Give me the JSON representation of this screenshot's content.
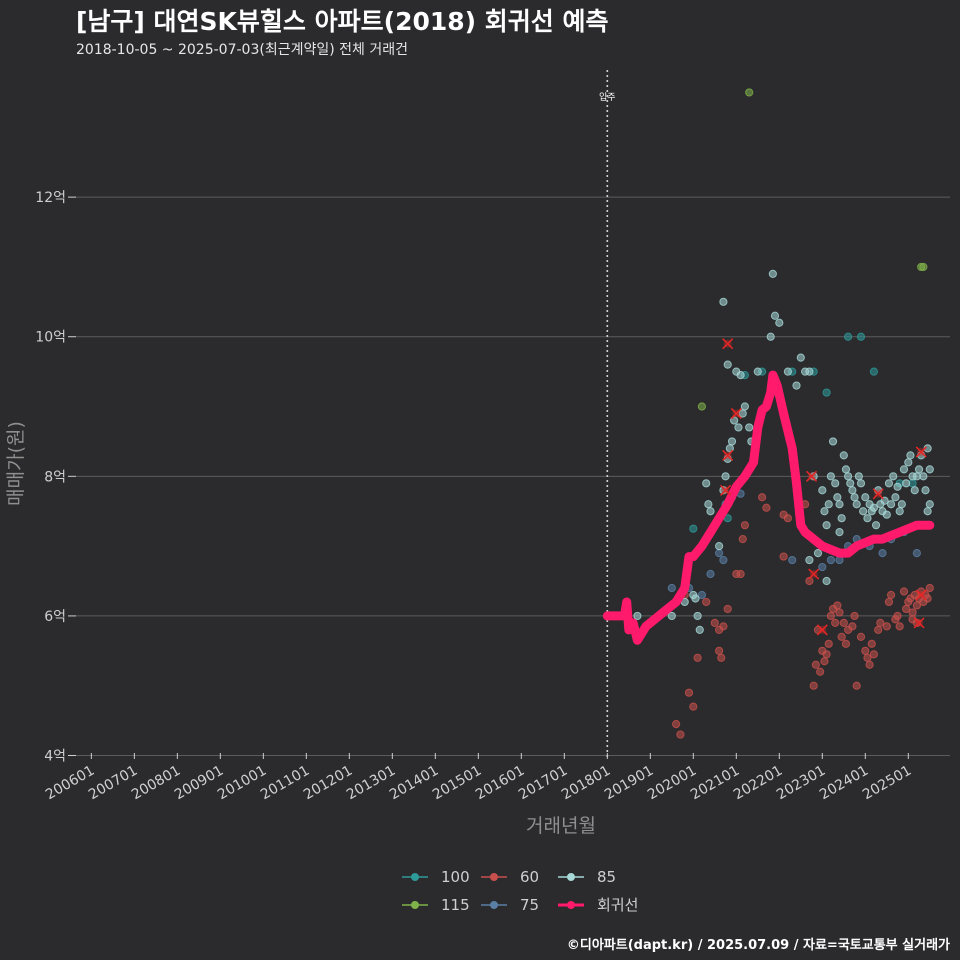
{
  "header": {
    "title": "[남구] 대연SK뷰힐스 아파트(2018) 회귀선 예측",
    "subtitle": "2018-10-05 ~ 2025-07-03(최근계약일) 전체 거래건"
  },
  "footer": {
    "caption": "©디아파트(dapt.kr) / 2025.07.09 / 자료=국토교통부 실거래가"
  },
  "chart_data": {
    "type": "scatter",
    "xlabel": "거래년월",
    "ylabel": "매매가(원)",
    "x_unit": "year",
    "xlim": [
      2005.55,
      2025.97
    ],
    "ylim": [
      3.95,
      13.85
    ],
    "y_ticks": [
      4,
      6,
      8,
      10,
      12
    ],
    "y_tick_labels": [
      "4억",
      "6억",
      "8억",
      "10억",
      "12억"
    ],
    "x_ticks": [
      2006,
      2007,
      2008,
      2009,
      2010,
      2011,
      2012,
      2013,
      2014,
      2015,
      2016,
      2017,
      2018,
      2019,
      2020,
      2021,
      2022,
      2023,
      2024,
      2025
    ],
    "x_tick_labels": [
      "200601",
      "200701",
      "200801",
      "200901",
      "201001",
      "201101",
      "201201",
      "201301",
      "201401",
      "201501",
      "201601",
      "201701",
      "201801",
      "201901",
      "202001",
      "202101",
      "202201",
      "202301",
      "202401",
      "202501"
    ],
    "grid": true,
    "legend_position": "bottom",
    "annotation": {
      "x": 2018.0,
      "label": "입주"
    },
    "colors": {
      "100": "#2e9a9a",
      "115": "#7fb24a",
      "60": "#c8504c",
      "75": "#5a7fa5",
      "85": "#a8d8d8",
      "회귀선": "#ff1a6c",
      "background": "#2b2b2d",
      "grid": "#5c5c5c",
      "sale_mark": "#e32626"
    },
    "legend": [
      {
        "key": "100",
        "label": "100"
      },
      {
        "key": "115",
        "label": "115"
      },
      {
        "key": "60",
        "label": "60"
      },
      {
        "key": "75",
        "label": "75"
      },
      {
        "key": "85",
        "label": "85"
      },
      {
        "key": "회귀선",
        "label": "회귀선"
      }
    ],
    "series": [
      {
        "name": "100",
        "points": [
          [
            2020.0,
            7.25
          ],
          [
            2020.8,
            7.4
          ],
          [
            2021.2,
            9.45
          ],
          [
            2021.6,
            9.5
          ],
          [
            2022.3,
            9.5
          ],
          [
            2022.8,
            9.5
          ],
          [
            2023.1,
            9.2
          ],
          [
            2023.6,
            10.0
          ],
          [
            2023.9,
            10.0
          ],
          [
            2024.2,
            9.5
          ],
          [
            2024.8,
            7.9
          ],
          [
            2025.1,
            7.9
          ]
        ]
      },
      {
        "name": "115",
        "points": [
          [
            2020.2,
            9.0
          ],
          [
            2021.3,
            13.5
          ],
          [
            2025.3,
            11.0
          ],
          [
            2025.35,
            11.0
          ]
        ]
      },
      {
        "name": "60",
        "points": [
          [
            2019.6,
            4.45
          ],
          [
            2019.7,
            4.3
          ],
          [
            2019.9,
            4.9
          ],
          [
            2020.0,
            4.7
          ],
          [
            2020.1,
            5.4
          ],
          [
            2019.8,
            6.3
          ],
          [
            2020.3,
            6.2
          ],
          [
            2020.5,
            5.9
          ],
          [
            2020.6,
            5.8
          ],
          [
            2020.6,
            5.5
          ],
          [
            2020.65,
            5.4
          ],
          [
            2020.7,
            5.85
          ],
          [
            2020.8,
            6.1
          ],
          [
            2021.0,
            6.6
          ],
          [
            2021.1,
            6.6
          ],
          [
            2021.2,
            7.3
          ],
          [
            2021.15,
            7.1
          ],
          [
            2021.6,
            7.7
          ],
          [
            2021.7,
            7.55
          ],
          [
            2022.1,
            7.45
          ],
          [
            2022.2,
            7.4
          ],
          [
            2022.6,
            7.6
          ],
          [
            2022.1,
            6.85
          ],
          [
            2022.7,
            6.5
          ],
          [
            2022.8,
            5.0
          ],
          [
            2022.85,
            5.3
          ],
          [
            2022.9,
            5.8
          ],
          [
            2022.95,
            5.2
          ],
          [
            2023.0,
            5.5
          ],
          [
            2023.05,
            5.35
          ],
          [
            2023.1,
            5.45
          ],
          [
            2023.15,
            5.6
          ],
          [
            2023.2,
            6.0
          ],
          [
            2023.25,
            6.1
          ],
          [
            2023.3,
            5.9
          ],
          [
            2023.35,
            6.15
          ],
          [
            2023.4,
            6.05
          ],
          [
            2023.45,
            5.7
          ],
          [
            2023.5,
            5.9
          ],
          [
            2023.55,
            5.6
          ],
          [
            2023.6,
            5.8
          ],
          [
            2023.7,
            5.85
          ],
          [
            2023.75,
            6.0
          ],
          [
            2023.8,
            5.0
          ],
          [
            2023.9,
            5.7
          ],
          [
            2024.0,
            5.5
          ],
          [
            2024.05,
            5.4
          ],
          [
            2024.1,
            5.3
          ],
          [
            2024.15,
            5.6
          ],
          [
            2024.2,
            5.45
          ],
          [
            2024.3,
            5.8
          ],
          [
            2024.35,
            5.9
          ],
          [
            2024.5,
            5.85
          ],
          [
            2024.55,
            6.2
          ],
          [
            2024.6,
            6.3
          ],
          [
            2024.7,
            5.95
          ],
          [
            2024.75,
            6.0
          ],
          [
            2024.8,
            5.85
          ],
          [
            2024.9,
            6.35
          ],
          [
            2024.95,
            6.1
          ],
          [
            2025.0,
            6.2
          ],
          [
            2025.05,
            6.25
          ],
          [
            2025.1,
            6.05
          ],
          [
            2025.15,
            6.3
          ],
          [
            2025.2,
            6.15
          ],
          [
            2025.25,
            6.25
          ],
          [
            2025.3,
            6.35
          ],
          [
            2025.35,
            6.2
          ],
          [
            2025.4,
            6.3
          ],
          [
            2025.45,
            6.25
          ],
          [
            2025.5,
            6.4
          ],
          [
            2025.1,
            5.95
          ],
          [
            2025.2,
            5.9
          ]
        ]
      },
      {
        "name": "75",
        "points": [
          [
            2019.5,
            6.4
          ],
          [
            2019.9,
            6.4
          ],
          [
            2020.2,
            6.3
          ],
          [
            2020.4,
            6.6
          ],
          [
            2020.6,
            6.9
          ],
          [
            2020.7,
            6.8
          ],
          [
            2020.75,
            7.6
          ],
          [
            2020.9,
            7.7
          ],
          [
            2021.1,
            7.75
          ],
          [
            2022.3,
            6.8
          ],
          [
            2023.0,
            6.7
          ],
          [
            2023.2,
            6.8
          ],
          [
            2023.4,
            6.8
          ],
          [
            2023.6,
            7.0
          ],
          [
            2023.8,
            7.1
          ],
          [
            2024.1,
            7.0
          ],
          [
            2024.4,
            6.9
          ],
          [
            2024.6,
            7.1
          ],
          [
            2024.9,
            7.2
          ],
          [
            2025.2,
            6.9
          ],
          [
            2025.4,
            7.3
          ]
        ]
      },
      {
        "name": "85",
        "points": [
          [
            2018.7,
            6.0
          ],
          [
            2019.2,
            6.0
          ],
          [
            2019.5,
            6.0
          ],
          [
            2019.8,
            6.2
          ],
          [
            2020.0,
            6.3
          ],
          [
            2020.05,
            6.25
          ],
          [
            2020.1,
            6.0
          ],
          [
            2020.15,
            5.8
          ],
          [
            2020.3,
            7.9
          ],
          [
            2020.35,
            7.6
          ],
          [
            2020.4,
            7.5
          ],
          [
            2020.5,
            7.3
          ],
          [
            2020.6,
            7.0
          ],
          [
            2020.7,
            7.8
          ],
          [
            2020.75,
            8.0
          ],
          [
            2020.8,
            8.25
          ],
          [
            2020.85,
            8.4
          ],
          [
            2020.9,
            8.5
          ],
          [
            2020.95,
            8.8
          ],
          [
            2021.0,
            9.5
          ],
          [
            2021.05,
            8.7
          ],
          [
            2021.1,
            9.45
          ],
          [
            2021.15,
            8.9
          ],
          [
            2021.2,
            9.0
          ],
          [
            2021.3,
            8.7
          ],
          [
            2021.35,
            8.5
          ],
          [
            2021.5,
            9.5
          ],
          [
            2021.8,
            10.0
          ],
          [
            2021.9,
            10.3
          ],
          [
            2022.0,
            10.2
          ],
          [
            2021.85,
            10.9
          ],
          [
            2020.7,
            10.5
          ],
          [
            2020.8,
            9.6
          ],
          [
            2022.2,
            9.5
          ],
          [
            2022.4,
            9.3
          ],
          [
            2022.5,
            9.7
          ],
          [
            2022.6,
            9.5
          ],
          [
            2022.7,
            9.5
          ],
          [
            2022.8,
            8.0
          ],
          [
            2023.0,
            7.8
          ],
          [
            2023.05,
            7.5
          ],
          [
            2023.1,
            7.3
          ],
          [
            2023.15,
            7.6
          ],
          [
            2023.2,
            8.0
          ],
          [
            2023.25,
            8.5
          ],
          [
            2023.3,
            7.9
          ],
          [
            2023.35,
            7.7
          ],
          [
            2023.4,
            7.6
          ],
          [
            2023.45,
            7.4
          ],
          [
            2023.5,
            8.3
          ],
          [
            2023.55,
            8.1
          ],
          [
            2023.6,
            8.0
          ],
          [
            2023.65,
            7.9
          ],
          [
            2023.7,
            7.8
          ],
          [
            2023.75,
            7.7
          ],
          [
            2023.8,
            7.6
          ],
          [
            2023.85,
            8.0
          ],
          [
            2023.9,
            7.9
          ],
          [
            2023.95,
            7.5
          ],
          [
            2024.0,
            7.7
          ],
          [
            2024.05,
            7.4
          ],
          [
            2024.1,
            7.6
          ],
          [
            2024.15,
            7.5
          ],
          [
            2024.2,
            7.55
          ],
          [
            2024.25,
            7.3
          ],
          [
            2024.3,
            7.8
          ],
          [
            2024.35,
            7.6
          ],
          [
            2024.4,
            7.5
          ],
          [
            2024.45,
            7.65
          ],
          [
            2024.5,
            7.45
          ],
          [
            2024.55,
            7.9
          ],
          [
            2024.6,
            7.6
          ],
          [
            2024.65,
            8.0
          ],
          [
            2024.7,
            7.7
          ],
          [
            2024.75,
            7.85
          ],
          [
            2024.8,
            7.5
          ],
          [
            2024.85,
            7.6
          ],
          [
            2024.9,
            8.1
          ],
          [
            2024.95,
            7.9
          ],
          [
            2025.0,
            8.2
          ],
          [
            2025.05,
            8.3
          ],
          [
            2025.1,
            8.0
          ],
          [
            2025.15,
            7.8
          ],
          [
            2025.2,
            8.0
          ],
          [
            2025.25,
            8.1
          ],
          [
            2025.3,
            8.3
          ],
          [
            2025.35,
            8.0
          ],
          [
            2025.4,
            7.8
          ],
          [
            2025.45,
            8.4
          ],
          [
            2025.5,
            8.1
          ],
          [
            2025.5,
            7.6
          ],
          [
            2025.45,
            7.5
          ],
          [
            2023.4,
            7.2
          ],
          [
            2022.9,
            6.9
          ],
          [
            2022.7,
            6.8
          ],
          [
            2023.1,
            6.5
          ]
        ]
      },
      {
        "name": "회귀선",
        "points": [
          [
            2018.0,
            6.0
          ],
          [
            2018.3,
            6.0
          ],
          [
            2018.4,
            6.0
          ],
          [
            2018.45,
            6.2
          ],
          [
            2018.5,
            5.8
          ],
          [
            2018.6,
            5.9
          ],
          [
            2018.7,
            5.65
          ],
          [
            2018.8,
            5.75
          ],
          [
            2018.9,
            5.85
          ],
          [
            2019.0,
            5.9
          ],
          [
            2019.2,
            6.0
          ],
          [
            2019.4,
            6.1
          ],
          [
            2019.6,
            6.2
          ],
          [
            2019.8,
            6.4
          ],
          [
            2019.9,
            6.85
          ],
          [
            2020.0,
            6.85
          ],
          [
            2020.2,
            7.0
          ],
          [
            2020.4,
            7.2
          ],
          [
            2020.6,
            7.4
          ],
          [
            2020.8,
            7.6
          ],
          [
            2021.0,
            7.85
          ],
          [
            2021.2,
            8.0
          ],
          [
            2021.4,
            8.2
          ],
          [
            2021.5,
            8.7
          ],
          [
            2021.6,
            8.95
          ],
          [
            2021.7,
            9.0
          ],
          [
            2021.8,
            9.2
          ],
          [
            2021.85,
            9.45
          ],
          [
            2021.95,
            9.3
          ],
          [
            2022.1,
            8.9
          ],
          [
            2022.3,
            8.4
          ],
          [
            2022.4,
            7.9
          ],
          [
            2022.5,
            7.3
          ],
          [
            2022.6,
            7.2
          ],
          [
            2022.8,
            7.1
          ],
          [
            2023.0,
            7.0
          ],
          [
            2023.2,
            6.95
          ],
          [
            2023.4,
            6.9
          ],
          [
            2023.6,
            6.9
          ],
          [
            2023.8,
            7.0
          ],
          [
            2024.0,
            7.05
          ],
          [
            2024.2,
            7.1
          ],
          [
            2024.4,
            7.1
          ],
          [
            2024.6,
            7.15
          ],
          [
            2024.8,
            7.2
          ],
          [
            2025.0,
            7.25
          ],
          [
            2025.2,
            7.3
          ],
          [
            2025.4,
            7.3
          ],
          [
            2025.5,
            7.3
          ]
        ]
      }
    ],
    "recent_sales": [
      [
        2020.8,
        9.9
      ],
      [
        2021.0,
        8.9
      ],
      [
        2020.8,
        8.3
      ],
      [
        2020.75,
        7.8
      ],
      [
        2022.75,
        8.0
      ],
      [
        2022.8,
        6.6
      ],
      [
        2023.0,
        5.8
      ],
      [
        2024.3,
        7.75
      ],
      [
        2025.3,
        8.35
      ],
      [
        2025.3,
        6.3
      ],
      [
        2025.25,
        5.9
      ]
    ]
  }
}
